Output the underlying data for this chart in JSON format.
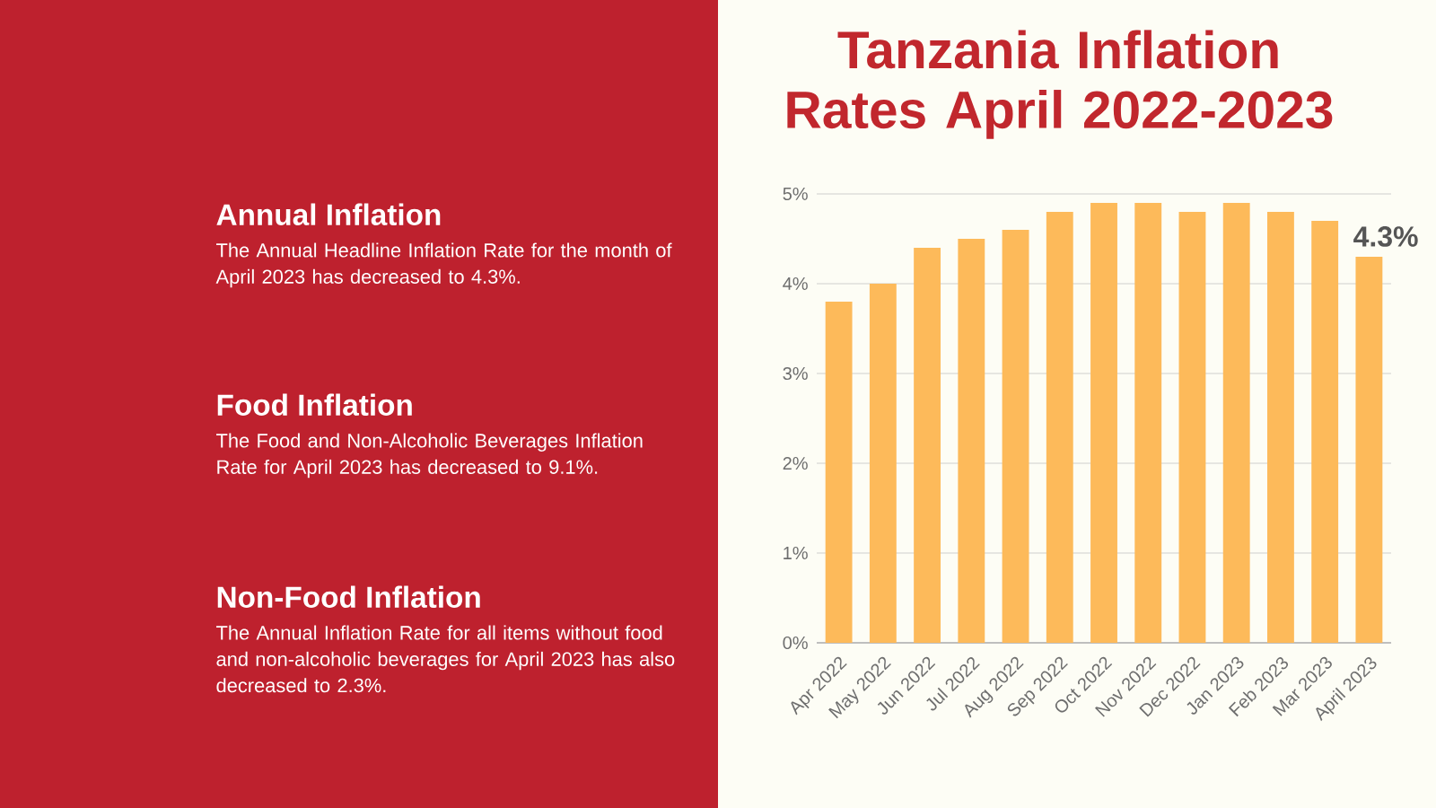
{
  "chart_data": {
    "type": "bar",
    "title": "Tanzania Inflation Rates April 2022-2023",
    "categories": [
      "Apr 2022",
      "May 2022",
      "Jun 2022",
      "Jul 2022",
      "Aug 2022",
      "Sep 2022",
      "Oct 2022",
      "Nov 2022",
      "Dec 2022",
      "Jan 2023",
      "Feb 2023",
      "Mar 2023",
      "April 2023"
    ],
    "values": [
      3.8,
      4.0,
      4.4,
      4.5,
      4.6,
      4.8,
      4.9,
      4.9,
      4.8,
      4.9,
      4.8,
      4.7,
      4.3
    ],
    "value_labels": [
      null,
      null,
      null,
      null,
      null,
      null,
      null,
      null,
      null,
      null,
      null,
      null,
      "4.3%"
    ],
    "color": "#fdba5a",
    "ylim": [
      0,
      5
    ],
    "yticks": [
      {
        "value": 0,
        "label": "0%"
      },
      {
        "value": 1,
        "label": "1%"
      },
      {
        "value": 2,
        "label": "2%"
      },
      {
        "value": 3,
        "label": "3%"
      },
      {
        "value": 4,
        "label": "4%"
      },
      {
        "value": 5,
        "label": "5%"
      }
    ],
    "grid": "y",
    "annotations": [
      "Annual Inflation",
      "The Annual Headline Inflation Rate for the month of April 2023 has decreased to 4.3%.",
      "Food Inflation",
      "The Food and Non-Alcoholic Beverages Inflation Rate for April 2023 has decreased to 9.1%.",
      "Non-Food Inflation",
      "The Annual Inflation Rate for all items without food and non-alcoholic beverages for April 2023 has also decreased to 2.3%."
    ]
  }
}
